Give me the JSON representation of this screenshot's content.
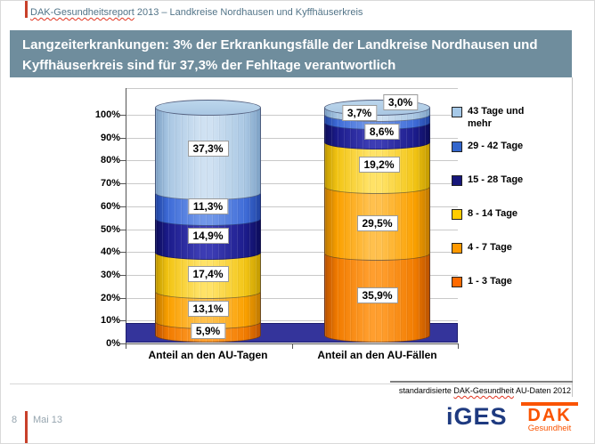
{
  "header": {
    "brand": "DAK-Gesundheitsreport",
    "rest": " 2013 – Landkreise Nordhausen und Kyffhäuserkreis"
  },
  "title": "Langzeiterkrankungen: 3% der Erkrankungsfälle der Landkreise Nordhausen und Kyffhäuserkreis sind für 37,3% der Fehltage verantwortlich",
  "chart_data": {
    "type": "bar",
    "subtype": "stacked-cylinder-3d",
    "categories": [
      "Anteil an den AU-Tagen",
      "Anteil an den AU-Fällen"
    ],
    "ylim": [
      0,
      100
    ],
    "grid": true,
    "legend_position": "right",
    "y_ticks": [
      "0%",
      "10%",
      "20%",
      "30%",
      "40%",
      "50%",
      "60%",
      "70%",
      "80%",
      "90%",
      "100%"
    ],
    "series": [
      {
        "name": "1 - 3 Tage",
        "values": [
          5.9,
          35.9
        ],
        "value_labels": [
          "5,9%",
          "35,9%"
        ],
        "colors": {
          "edge": "#BD5400",
          "mid": "#F27C00",
          "light": "#FF9E2E",
          "legend": "#FF6A00"
        },
        "label_offsets": [
          [
            0,
            3
          ],
          [
            0,
            1
          ]
        ]
      },
      {
        "name": "4 - 7 Tage",
        "values": [
          13.1,
          29.5
        ],
        "value_labels": [
          "13,1%",
          "29,5%"
        ],
        "colors": {
          "edge": "#C17A00",
          "mid": "#FBA100",
          "light": "#FFC04D",
          "legend": "#FF9900"
        },
        "label_offsets": [
          [
            0,
            2
          ],
          [
            0,
            4
          ]
        ]
      },
      {
        "name": "8 - 14 Tage",
        "values": [
          17.4,
          19.2
        ],
        "value_labels": [
          "17,4%",
          "19,2%"
        ],
        "colors": {
          "edge": "#C49B00",
          "mid": "#F3C515",
          "light": "#FFE266",
          "legend": "#FFCC00"
        },
        "label_offsets": [
          [
            0,
            2
          ],
          [
            2,
            0
          ]
        ]
      },
      {
        "name": "15 - 28 Tage",
        "values": [
          14.9,
          8.6
        ],
        "value_labels": [
          "14,9%",
          "8,6%"
        ],
        "colors": {
          "edge": "#0D0D5C",
          "mid": "#1C1C8C",
          "light": "#3C3CB4",
          "legend": "#17177A"
        },
        "label_offsets": [
          [
            0,
            0
          ],
          [
            5,
            -1
          ]
        ]
      },
      {
        "name": "29 - 42 Tage",
        "values": [
          11.3,
          3.7
        ],
        "value_labels": [
          "11,3%",
          "3,7%"
        ],
        "colors": {
          "edge": "#2145A3",
          "mid": "#3F6CD8",
          "light": "#7097E8",
          "legend": "#3366CC"
        },
        "label_offsets": [
          [
            0,
            1
          ],
          [
            -20,
            -7
          ]
        ]
      },
      {
        "name": "43 Tage und mehr",
        "values": [
          37.3,
          3.0
        ],
        "value_labels": [
          "37,3%",
          "3,0%"
        ],
        "colors": {
          "edge": "#7EA2C6",
          "mid": "#A9C7E3",
          "light": "#CFE1F2",
          "legend": "#A6C9E8",
          "cap": "#BCD6EC"
        },
        "label_offsets": [
          [
            0,
            -2
          ],
          [
            26,
            -10
          ]
        ]
      }
    ],
    "floor_color": "#34349B"
  },
  "footnote": {
    "prefix": "standardisierte ",
    "brand": "DAK-Gesundheit",
    "suffix": " AU-Daten 2012"
  },
  "page_footer": {
    "page": "8",
    "date": "Mai 13"
  },
  "logos": {
    "iges": "iGES",
    "dak": "DAK",
    "dak_sub": "Gesundheit"
  },
  "theme": {
    "title_bar_bg": "#6F8D9D",
    "header_text": "#527488",
    "accent_red": "#C8402A",
    "footer_text": "#96A5AF",
    "iges_navy": "#1E3A80",
    "dak_orange": "#FA5300"
  }
}
